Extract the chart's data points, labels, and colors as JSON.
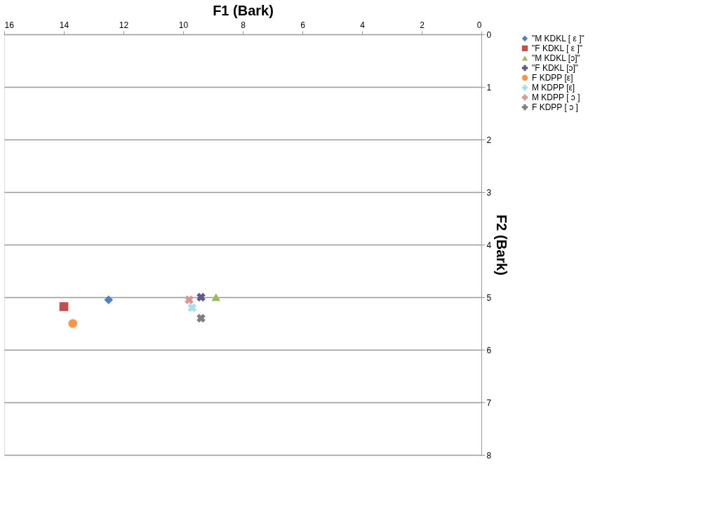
{
  "chart_data": {
    "type": "scatter",
    "xlabel": "F1 (Bark)",
    "ylabel": "F2 (Bark)",
    "xlim": [
      16,
      0
    ],
    "xticks": [
      16,
      14,
      12,
      10,
      8,
      6,
      4,
      2,
      0
    ],
    "ylim": [
      8,
      0
    ],
    "yticks": [
      0,
      1,
      2,
      3,
      4,
      5,
      6,
      7,
      8
    ],
    "grid": "y",
    "legend": "right",
    "series": [
      {
        "name": "\"M KDKL [ ε ]\"",
        "color": "#4f81bd",
        "marker": "diamond",
        "x": [
          12.5
        ],
        "values": [
          5.05
        ]
      },
      {
        "name": "\"F KDKL [ ε ]\"",
        "color": "#c0504d",
        "marker": "square",
        "x": [
          14.0
        ],
        "values": [
          5.18
        ]
      },
      {
        "name": "\"M KDKL [ɔ]\"",
        "color": "#9bbb59",
        "marker": "triangle",
        "x": [
          8.9
        ],
        "values": [
          5.0
        ]
      },
      {
        "name": "\"F KDKL [ɔ]\"",
        "color": "#5f5a8a",
        "marker": "cross",
        "x": [
          9.4
        ],
        "values": [
          5.0
        ]
      },
      {
        "name": "F KDPP [ε]",
        "color": "#f79646",
        "marker": "circle",
        "x": [
          13.7
        ],
        "values": [
          5.5
        ]
      },
      {
        "name": "M KDPP [ε]",
        "color": "#a6e0f0",
        "marker": "cross",
        "x": [
          9.7
        ],
        "values": [
          5.2
        ]
      },
      {
        "name": "M KDPP [ ɔ ]",
        "color": "#d99694",
        "marker": "cross",
        "x": [
          9.8
        ],
        "values": [
          5.05
        ]
      },
      {
        "name": "F KDPP [ ɔ ]",
        "color": "#7f7f7f",
        "marker": "cross",
        "x": [
          9.4
        ],
        "values": [
          5.4
        ]
      }
    ]
  }
}
